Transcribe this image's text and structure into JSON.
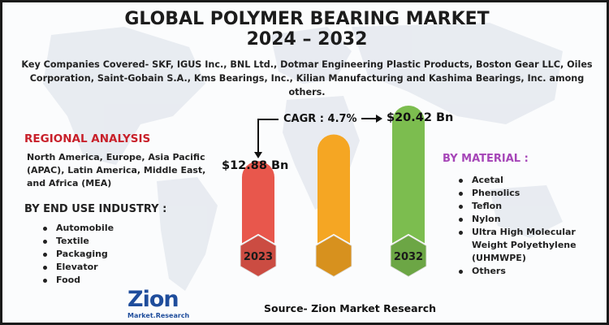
{
  "title_line1": "GLOBAL POLYMER BEARING MARKET",
  "title_line2": "2024 – 2032",
  "companies_text": "Key Companies Covered- SKF, IGUS Inc., BNL Ltd., Dotmar Engineering Plastic Products, Boston Gear LLC, Oiles Corporation, Saint-Gobain S.A., Kms Bearings, Inc., Kilian Manufacturing and Kashima Bearings, Inc. among others.",
  "cagr_text": "CAGR : 4.7%",
  "value_start": "$12.88 Bn",
  "value_end": "$20.42 Bn",
  "regional": {
    "heading": "REGIONAL ANALYSIS",
    "text": "North America, Europe, Asia Pacific (APAC), Latin America, Middle East, and Africa (MEA)"
  },
  "end_use": {
    "heading": "BY END USE INDUSTRY :",
    "items": [
      "Automobile",
      "Textile",
      "Packaging",
      "Elevator",
      "Food"
    ]
  },
  "material": {
    "heading": "BY MATERIAL :",
    "items": [
      "Acetal",
      "Phenolics",
      "Teflon",
      "Nylon",
      "Ultra High Molecular Weight Polyethylene (UHMWPE)",
      "Others"
    ]
  },
  "source": "Source- Zion Market Research",
  "logo": {
    "name": "Zion",
    "sub": "Market.Research"
  },
  "colors": {
    "bar_2023": "#e8574c",
    "bar_mid": "#f5a623",
    "bar_2032": "#7cbd4f",
    "regional_heading": "#c8202a",
    "material_heading": "#a646b8",
    "logo": "#1f4d9c"
  },
  "chart_data": {
    "type": "bar",
    "categories": [
      "2023",
      "",
      "2032"
    ],
    "values": [
      12.88,
      16.5,
      20.42
    ],
    "ylim": [
      0,
      22
    ],
    "annotations": [
      "$12.88 Bn",
      "CAGR : 4.7%",
      "$20.42 Bn"
    ]
  }
}
